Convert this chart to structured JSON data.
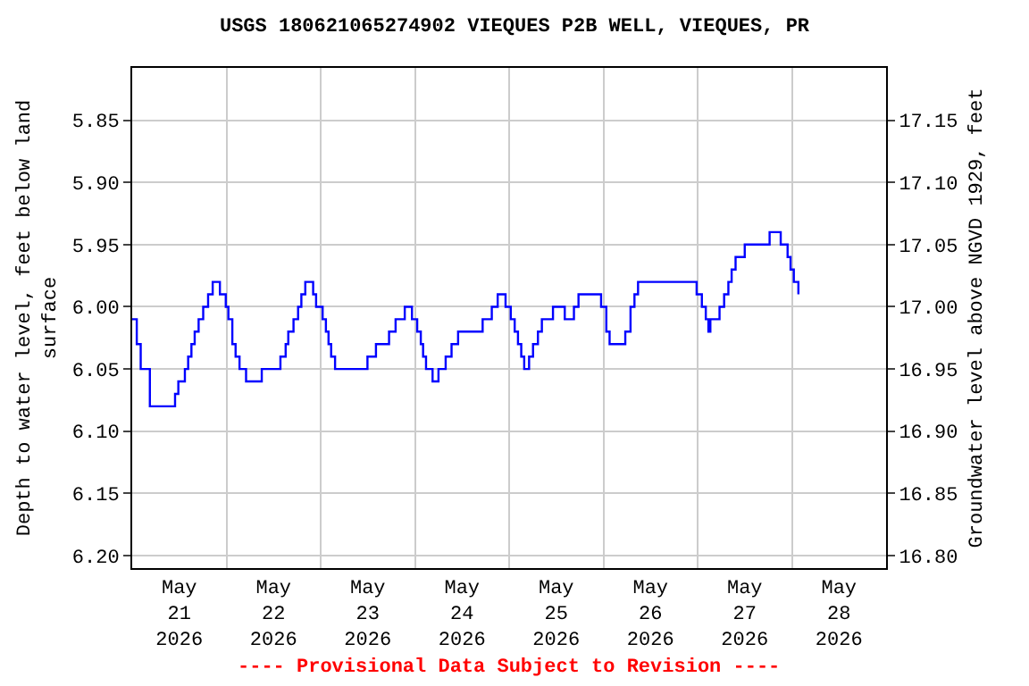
{
  "chart_data": {
    "type": "step",
    "title": "USGS 180621065274902 VIEQUES P2B WELL, VIEQUES, PR",
    "ylabel": "Depth to water level, feet below land surface",
    "y2label": "Groundwater level above NGVD 1929, feet",
    "annotations": [
      "---- Provisional Data Subject to Revision ----"
    ],
    "x": [
      "2026-05-21T00:00",
      "2026-05-21T01:10",
      "2026-05-21T02:10",
      "2026-05-21T04:30",
      "2026-05-21T10:55",
      "2026-05-21T11:45",
      "2026-05-21T13:25",
      "2026-05-21T14:15",
      "2026-05-21T15:05",
      "2026-05-21T15:55",
      "2026-05-21T16:55",
      "2026-05-21T18:05",
      "2026-05-21T19:20",
      "2026-05-21T20:30",
      "2026-05-21T22:20",
      "2026-05-21T23:50",
      "2026-05-22T00:30",
      "2026-05-22T01:30",
      "2026-05-22T02:20",
      "2026-05-22T03:20",
      "2026-05-22T05:00",
      "2026-05-22T09:00",
      "2026-05-22T13:45",
      "2026-05-22T15:05",
      "2026-05-22T15:45",
      "2026-05-22T17:05",
      "2026-05-22T18:15",
      "2026-05-22T19:05",
      "2026-05-22T20:05",
      "2026-05-22T22:05",
      "2026-05-22T22:50",
      "2026-05-23T00:30",
      "2026-05-23T01:20",
      "2026-05-23T02:00",
      "2026-05-23T02:40",
      "2026-05-23T03:40",
      "2026-05-23T11:55",
      "2026-05-23T14:05",
      "2026-05-23T17:25",
      "2026-05-23T19:05",
      "2026-05-23T21:25",
      "2026-05-23T23:15",
      "2026-05-24T00:35",
      "2026-05-24T01:30",
      "2026-05-24T02:05",
      "2026-05-24T02:50",
      "2026-05-24T04:30",
      "2026-05-24T06:00",
      "2026-05-24T07:50",
      "2026-05-24T09:20",
      "2026-05-24T11:00",
      "2026-05-24T17:15",
      "2026-05-24T19:35",
      "2026-05-24T21:05",
      "2026-05-24T23:05",
      "2026-05-25T00:25",
      "2026-05-25T01:25",
      "2026-05-25T02:15",
      "2026-05-25T03:05",
      "2026-05-25T03:50",
      "2026-05-25T05:05",
      "2026-05-25T06:05",
      "2026-05-25T07:20",
      "2026-05-25T08:20",
      "2026-05-25T11:10",
      "2026-05-25T14:10",
      "2026-05-25T16:30",
      "2026-05-25T17:40",
      "2026-05-25T23:25",
      "2026-05-26T00:45",
      "2026-05-26T01:35",
      "2026-05-26T05:35",
      "2026-05-26T06:55",
      "2026-05-26T07:55",
      "2026-05-26T08:50",
      "2026-05-26T23:45",
      "2026-05-27T01:05",
      "2026-05-27T02:05",
      "2026-05-27T02:45",
      "2026-05-27T03:15",
      "2026-05-27T05:35",
      "2026-05-27T06:45",
      "2026-05-27T07:50",
      "2026-05-27T08:40",
      "2026-05-27T09:40",
      "2026-05-27T12:00",
      "2026-05-27T18:20",
      "2026-05-27T21:10",
      "2026-05-27T22:55",
      "2026-05-27T23:40",
      "2026-05-28T00:30",
      "2026-05-28T01:40"
    ],
    "series": [
      {
        "color": "#0000ff",
        "values": [
          6.01,
          6.03,
          6.05,
          6.08,
          6.07,
          6.06,
          6.05,
          6.04,
          6.03,
          6.02,
          6.01,
          6.0,
          5.99,
          5.98,
          5.99,
          6.0,
          6.01,
          6.03,
          6.04,
          6.05,
          6.06,
          6.05,
          6.04,
          6.03,
          6.02,
          6.01,
          6.0,
          5.99,
          5.98,
          5.99,
          6.0,
          6.01,
          6.02,
          6.03,
          6.04,
          6.05,
          6.04,
          6.03,
          6.02,
          6.01,
          6.0,
          6.01,
          6.02,
          6.03,
          6.04,
          6.05,
          6.06,
          6.05,
          6.04,
          6.03,
          6.02,
          6.01,
          6.0,
          5.99,
          6.0,
          6.01,
          6.02,
          6.03,
          6.04,
          6.05,
          6.04,
          6.03,
          6.02,
          6.01,
          6.0,
          6.01,
          6.0,
          5.99,
          6.0,
          6.02,
          6.03,
          6.02,
          6.0,
          5.99,
          5.98,
          5.99,
          6.0,
          6.01,
          6.02,
          6.01,
          6.0,
          5.99,
          5.98,
          5.97,
          5.96,
          5.95,
          5.94,
          5.95,
          5.96,
          5.97,
          5.98,
          5.99
        ]
      }
    ],
    "xlim": [
      "2026-05-21T00:00",
      "2026-05-29T00:00"
    ],
    "xticks": [
      {
        "value": "2026-05-21T12:00",
        "label": "May\n21\n2026"
      },
      {
        "value": "2026-05-22T12:00",
        "label": "May\n22\n2026"
      },
      {
        "value": "2026-05-23T12:00",
        "label": "May\n23\n2026"
      },
      {
        "value": "2026-05-24T12:00",
        "label": "May\n24\n2026"
      },
      {
        "value": "2026-05-25T12:00",
        "label": "May\n25\n2026"
      },
      {
        "value": "2026-05-26T12:00",
        "label": "May\n26\n2026"
      },
      {
        "value": "2026-05-27T12:00",
        "label": "May\n27\n2026"
      },
      {
        "value": "2026-05-28T12:00",
        "label": "May\n28\n2026"
      },
      {
        "value": "2026-05-22T00:00",
        "label": null
      },
      {
        "value": "2026-05-23T00:00",
        "label": null
      },
      {
        "value": "2026-05-24T00:00",
        "label": null
      },
      {
        "value": "2026-05-25T00:00",
        "label": null
      },
      {
        "value": "2026-05-26T00:00",
        "label": null
      },
      {
        "value": "2026-05-27T00:00",
        "label": null
      },
      {
        "value": "2026-05-28T00:00",
        "label": null
      }
    ],
    "ylim": [
      6.21,
      5.808
    ],
    "yticks": [
      {
        "value": 5.85,
        "label": "5.85"
      },
      {
        "value": 5.9,
        "label": "5.90"
      },
      {
        "value": 5.95,
        "label": "5.95"
      },
      {
        "value": 6.0,
        "label": "6.00"
      },
      {
        "value": 6.05,
        "label": "6.05"
      },
      {
        "value": 6.1,
        "label": "6.10"
      },
      {
        "value": 6.15,
        "label": "6.15"
      },
      {
        "value": 6.2,
        "label": "6.20"
      }
    ],
    "y2lim": [
      16.79,
      17.192
    ],
    "y2ticks": [
      {
        "value": 16.8,
        "label": "16.80"
      },
      {
        "value": 16.85,
        "label": "16.85"
      },
      {
        "value": 16.9,
        "label": "16.90"
      },
      {
        "value": 16.95,
        "label": "16.95"
      },
      {
        "value": 17.0,
        "label": "17.00"
      },
      {
        "value": 17.05,
        "label": "17.05"
      },
      {
        "value": 17.1,
        "label": "17.10"
      },
      {
        "value": 17.15,
        "label": "17.15"
      }
    ],
    "grid": true,
    "line_style": "solid",
    "marker": "none"
  }
}
